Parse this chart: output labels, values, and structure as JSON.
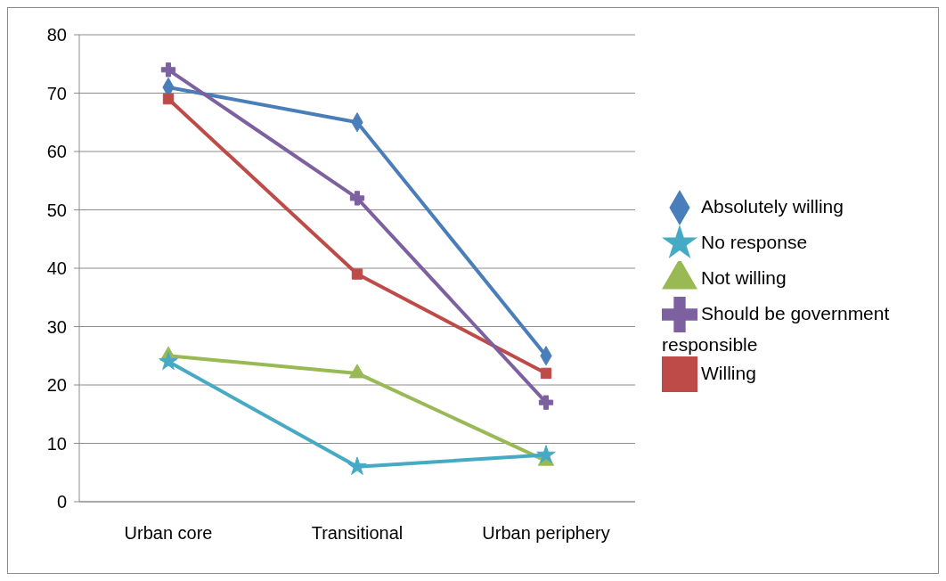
{
  "chart_data": {
    "type": "line",
    "categories": [
      "Urban core",
      "Transitional",
      "Urban periphery"
    ],
    "series": [
      {
        "name": "Absolutely willing",
        "color": "#4a7ebb",
        "marker": "diamond",
        "values": [
          71,
          65,
          25
        ]
      },
      {
        "name": "Willing",
        "color": "#be4b48",
        "marker": "square",
        "values": [
          69,
          39,
          22
        ]
      },
      {
        "name": "Not willing",
        "color": "#98b954",
        "marker": "triangle",
        "values": [
          25,
          22,
          7
        ]
      },
      {
        "name": "Should be government responsible",
        "color": "#7d60a0",
        "marker": "cross",
        "values": [
          74,
          52,
          17
        ]
      },
      {
        "name": "No response",
        "color": "#46aac5",
        "marker": "star",
        "values": [
          24,
          6,
          8
        ]
      }
    ],
    "ylim": [
      0,
      80
    ],
    "yticks": [
      0,
      10,
      20,
      30,
      40,
      50,
      60,
      70,
      80
    ],
    "grid": "y",
    "legend": "right"
  }
}
